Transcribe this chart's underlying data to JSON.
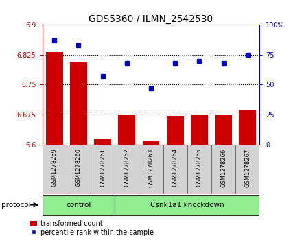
{
  "title": "GDS5360 / ILMN_2542530",
  "samples": [
    "GSM1278259",
    "GSM1278260",
    "GSM1278261",
    "GSM1278262",
    "GSM1278263",
    "GSM1278264",
    "GSM1278265",
    "GSM1278266",
    "GSM1278267"
  ],
  "bar_values": [
    6.831,
    6.805,
    6.614,
    6.675,
    6.607,
    6.671,
    6.675,
    6.675,
    6.687
  ],
  "dot_values": [
    87,
    83,
    57,
    68,
    47,
    68,
    70,
    68,
    75
  ],
  "bar_base": 6.6,
  "ylim_left": [
    6.6,
    6.9
  ],
  "ylim_right": [
    0,
    100
  ],
  "yticks_left": [
    6.6,
    6.675,
    6.75,
    6.825,
    6.9
  ],
  "ytick_labels_left": [
    "6.6",
    "6.675",
    "6.75",
    "6.825",
    "6.9"
  ],
  "yticks_right": [
    0,
    25,
    50,
    75,
    100
  ],
  "ytick_labels_right": [
    "0",
    "25",
    "50",
    "75",
    "100%"
  ],
  "hlines": [
    6.675,
    6.75,
    6.825
  ],
  "bar_color": "#cc0000",
  "dot_color": "#0000cc",
  "protocol_groups": [
    {
      "label": "control",
      "start": 0,
      "end": 3
    },
    {
      "label": "Csnk1a1 knockdown",
      "start": 3,
      "end": 9
    }
  ],
  "protocol_label": "protocol",
  "protocol_bg": "#90EE90",
  "tick_area_bg": "#d3d3d3",
  "legend_bar_label": "transformed count",
  "legend_dot_label": "percentile rank within the sample",
  "bar_width": 0.7,
  "figsize": [
    4.4,
    3.63
  ],
  "dpi": 100
}
